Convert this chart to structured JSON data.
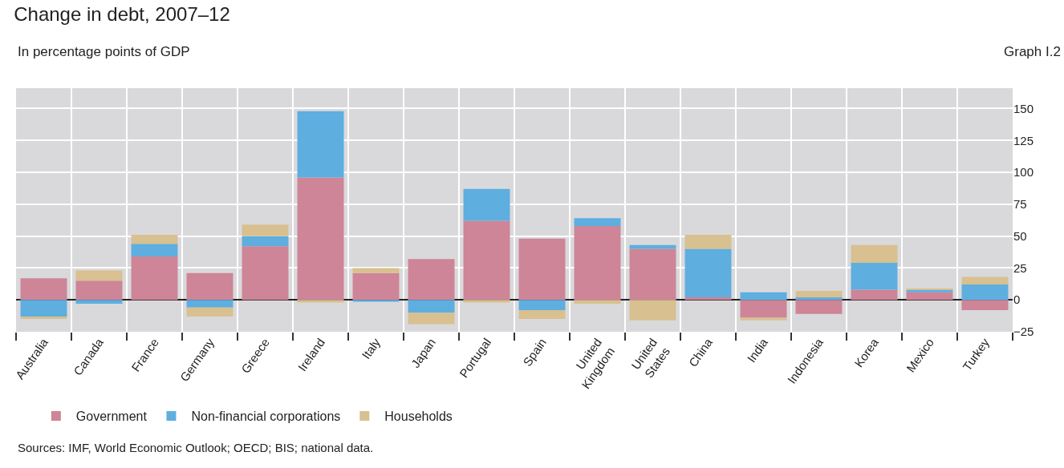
{
  "chart_data": {
    "type": "bar",
    "title": "Change in debt, 2007–12",
    "subtitle": "In percentage points of GDP",
    "annotations": [
      "Graph I.2",
      "Sources: IMF, World Economic Outlook; OECD; BIS; national data."
    ],
    "categories": [
      "Australia",
      "Canada",
      "France",
      "Germany",
      "Greece",
      "Ireland",
      "Italy",
      "Japan",
      "Portugal",
      "Spain",
      "United Kingdom",
      "United States",
      "China",
      "India",
      "Indonesia",
      "Korea",
      "Mexico",
      "Turkey"
    ],
    "stacked": true,
    "series": [
      {
        "name": "Government",
        "color": "#cd8597",
        "values": [
          17,
          15,
          34,
          21,
          42,
          96,
          21,
          32,
          62,
          48,
          58,
          40,
          2,
          -14,
          -11,
          8,
          6,
          -8
        ]
      },
      {
        "name": "Non-financial corporations",
        "color": "#5eaee0",
        "values": [
          -13,
          -3,
          10,
          -6,
          8,
          52,
          -1.5,
          -10,
          25,
          -8,
          6,
          3,
          38,
          6,
          2,
          21,
          2,
          12
        ]
      },
      {
        "name": "Households",
        "color": "#d8c090",
        "values": [
          -2,
          8,
          7,
          -7,
          9,
          -2,
          4,
          -9,
          -2,
          -7,
          -3,
          -16,
          11,
          -2,
          5,
          14,
          1,
          6
        ]
      }
    ],
    "ylim": [
      -25,
      166
    ],
    "yticks": [
      -25,
      0,
      25,
      50,
      75,
      100,
      125,
      150
    ],
    "grid": true,
    "legend": "bottom"
  }
}
